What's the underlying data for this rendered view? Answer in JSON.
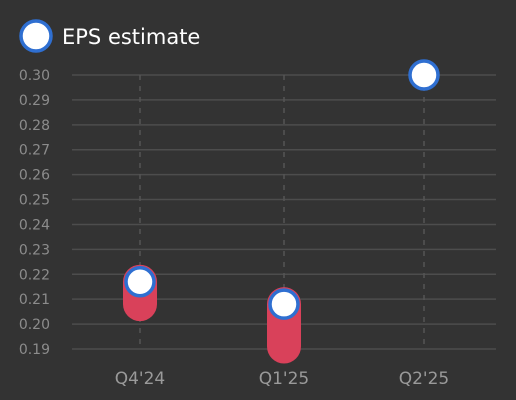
{
  "colors": {
    "background": "#333333",
    "grid": "#4d4d4d",
    "gridline_vertical": "#555555",
    "range_bar": "#d9415a",
    "marker_fill": "#ffffff",
    "marker_stroke": "#2f6fd1",
    "tick_text": "#8c8c8c",
    "legend_text": "#ffffff"
  },
  "legend": {
    "label": "EPS estimate",
    "marker_icon": "circle-marker-icon"
  },
  "chart_data": {
    "type": "scatter",
    "title": "",
    "xlabel": "",
    "ylabel": "",
    "categories": [
      "Q4'24",
      "Q1'25",
      "Q2'25"
    ],
    "ylim": [
      0.19,
      0.3
    ],
    "yticks": [
      "0.30",
      "0.29",
      "0.28",
      "0.27",
      "0.26",
      "0.25",
      "0.24",
      "0.23",
      "0.22",
      "0.21",
      "0.20",
      "0.19"
    ],
    "grid": true,
    "legend_position": "top-left",
    "series": [
      {
        "name": "EPS estimate",
        "values": [
          0.217,
          0.208,
          0.3
        ]
      }
    ],
    "ranges": [
      {
        "category": "Q4'24",
        "low": 0.208,
        "high": 0.217
      },
      {
        "category": "Q1'25",
        "low": 0.191,
        "high": 0.208
      },
      {
        "category": "Q2'25",
        "low": null,
        "high": null
      }
    ]
  }
}
